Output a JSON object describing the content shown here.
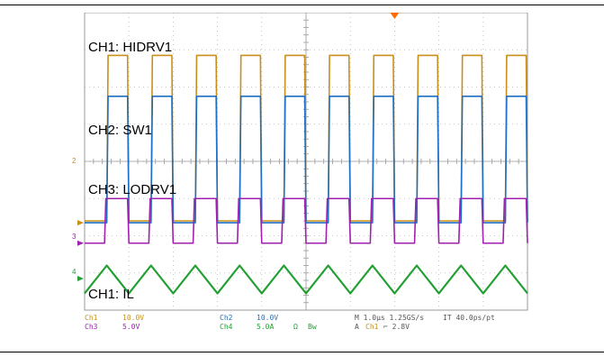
{
  "chart_data": {
    "type": "line",
    "title": "",
    "grid": true,
    "divisions": {
      "horizontal": 10,
      "vertical": 8
    },
    "period_us": 1.0,
    "x_range_us": [
      -5,
      5
    ],
    "channel_labels": [
      "CH1: HIDRV1",
      "CH2: SW1",
      "CH3: LODRV1",
      "CH1: IL"
    ],
    "series": [
      {
        "color": "#c8901a",
        "levels_div": [
          -1.6,
          2.85
        ],
        "duty": 0.5
      },
      {
        "color": "#1f6fc2",
        "levels_div": [
          -1.65,
          1.75
        ],
        "duty": 0.5
      },
      {
        "color": "#a020b0",
        "levels_div": [
          -2.2,
          -1.0
        ],
        "duty": 0.55
      },
      {
        "color": "#22a033",
        "levels_div": [
          -3.55,
          -2.8
        ],
        "shape": "triangle"
      }
    ],
    "ground_markers": [
      {
        "label": "2",
        "color": "#c8901a",
        "level_div": -1.65
      },
      {
        "label": "3",
        "color": "#a020b0",
        "level_div": -2.2
      },
      {
        "label": "4",
        "color": "#22a033",
        "level_div": -3.15
      }
    ],
    "trigger_color": "#ff6a00",
    "readouts": [
      {
        "text": "Ch1",
        "color": "#c8901a"
      },
      {
        "text": "10.0V",
        "color": "#c8901a"
      },
      {
        "text": "Ch2",
        "color": "#1f6fc2"
      },
      {
        "text": "10.0V",
        "color": "#1f6fc2"
      },
      {
        "text": "M 1.0µs 1.25GS/s",
        "color": "#555555"
      },
      {
        "text": "IT 40.0ps/pt",
        "color": "#555555"
      },
      {
        "text": "Ch3",
        "color": "#a020b0"
      },
      {
        "text": "5.0V",
        "color": "#a020b0"
      },
      {
        "text": "Ch4",
        "color": "#22a033"
      },
      {
        "text": "5.0A",
        "color": "#22a033"
      },
      {
        "text": "Ω",
        "color": "#22a033"
      },
      {
        "text": "Bw",
        "color": "#22a033"
      },
      {
        "text": "A",
        "color": "#555555"
      },
      {
        "text": "Ch1",
        "color": "#c8901a"
      },
      {
        "text": "⌐ 2.8V",
        "color": "#555555"
      }
    ]
  }
}
